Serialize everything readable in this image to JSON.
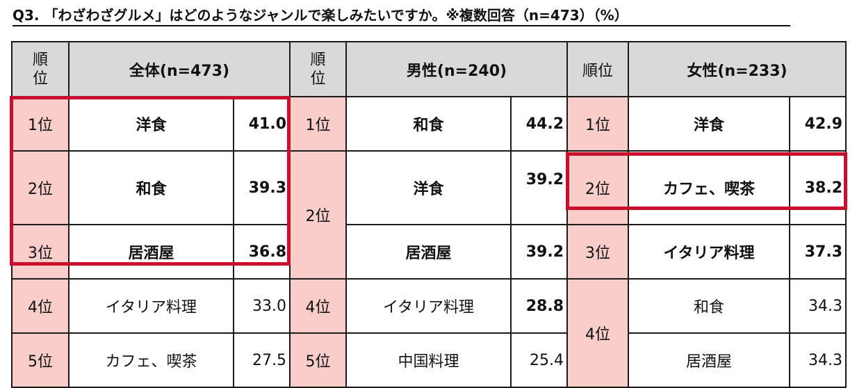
{
  "title": "Q3. 「わざわざグルメ」はどのようなジャンルで楽しみたいですか。※複数回答（n=473）（%）",
  "header": {
    "rank_line1": "順",
    "rank_line2": "位",
    "rank_full": "順位",
    "all": "全体(n=473)",
    "male": "男性(n=240)",
    "female": "女性(n=233)"
  },
  "all": [
    {
      "rank": "1位",
      "name": "洋食",
      "value": "41.0"
    },
    {
      "rank": "2位",
      "name": "和食",
      "value": "39.3"
    },
    {
      "rank": "3位",
      "name": "居酒屋",
      "value": "36.8"
    },
    {
      "rank": "4位",
      "name": "イタリア料理",
      "value": "33.0"
    },
    {
      "rank": "5位",
      "name": "カフェ、喫茶",
      "value": "27.5"
    }
  ],
  "male": [
    {
      "rank": "1位",
      "name": "和食",
      "value": "44.2"
    },
    {
      "rank": "2位",
      "name": "洋食",
      "value": "39.2"
    },
    {
      "rank": "",
      "name": "居酒屋",
      "value": "39.2"
    },
    {
      "rank": "4位",
      "name": "イタリア料理",
      "value": "28.8"
    },
    {
      "rank": "5位",
      "name": "中国料理",
      "value": "25.4"
    }
  ],
  "female": [
    {
      "rank": "1位",
      "name": "洋食",
      "value": "42.9"
    },
    {
      "rank": "2位",
      "name": "カフェ、喫茶",
      "value": "38.2"
    },
    {
      "rank": "3位",
      "name": "イタリア料理",
      "value": "37.3"
    },
    {
      "rank": "4位",
      "name": "和食",
      "value": "34.3"
    },
    {
      "rank": "",
      "name": "居酒屋",
      "value": "34.3"
    }
  ],
  "colors": {
    "header_bg": "#d9d9d9",
    "rank_bg": "#f8cdca",
    "highlight": "#c8102e",
    "border": "#1a1a1a"
  }
}
